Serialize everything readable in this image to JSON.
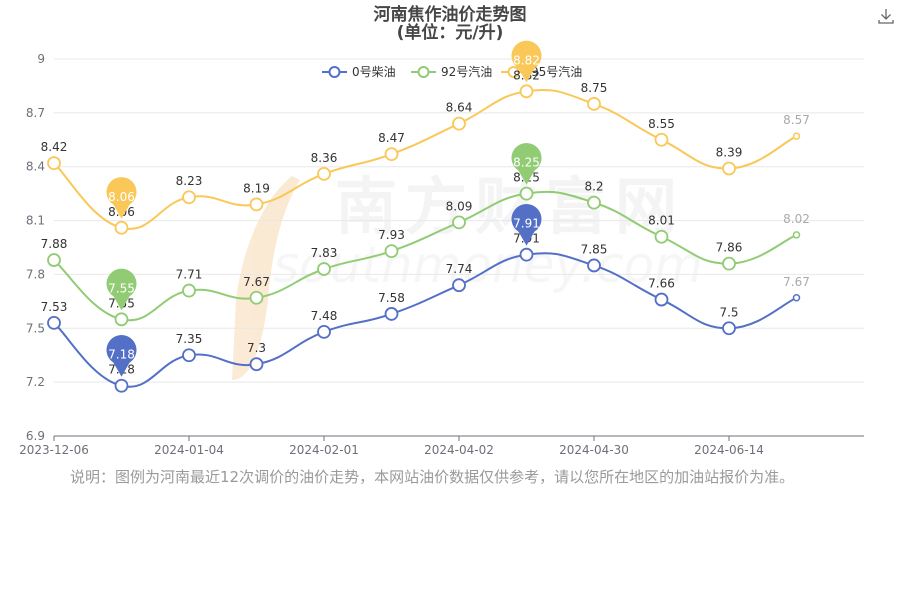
{
  "chart_data": {
    "type": "line",
    "title": "河南焦作油价走势图",
    "subtitle": "(单位：元/升)",
    "xlabel": "",
    "ylabel": "",
    "x_tick_labels": [
      "2023-12-06",
      "2024-01-04",
      "2024-02-01",
      "2024-04-02",
      "2024-04-30",
      "2024-06-14"
    ],
    "y_ticks": [
      6.9,
      7.2,
      7.5,
      7.8,
      8.1,
      8.4,
      8.7,
      9
    ],
    "ylim": [
      6.9,
      9
    ],
    "grid": true,
    "legend_position": "top-center",
    "point_count": 12,
    "series": [
      {
        "name": "0号柴油",
        "color": "#5470c6",
        "values": [
          7.53,
          7.18,
          7.35,
          7.3,
          7.48,
          7.58,
          7.74,
          7.91,
          7.85,
          7.66,
          7.5,
          7.67
        ],
        "markers": [
          {
            "label": "7.18",
            "index": 1
          },
          {
            "label": "7.91",
            "index": 7
          }
        ]
      },
      {
        "name": "92号汽油",
        "color": "#91cc75",
        "values": [
          7.88,
          7.55,
          7.71,
          7.67,
          7.83,
          7.93,
          8.09,
          8.25,
          8.2,
          8.01,
          7.86,
          8.02
        ],
        "markers": [
          {
            "label": "7.55",
            "index": 1
          },
          {
            "label": "8.25",
            "index": 7
          }
        ]
      },
      {
        "name": "95号汽油",
        "color": "#fac858",
        "values": [
          8.42,
          8.06,
          8.23,
          8.19,
          8.36,
          8.47,
          8.64,
          8.82,
          8.75,
          8.55,
          8.39,
          8.57
        ],
        "markers": [
          {
            "label": "8.06",
            "index": 1
          },
          {
            "label": "8.82",
            "index": 7
          }
        ]
      }
    ]
  },
  "note": "说明：图例为河南最近12次调价的油价走势，本网站油价数据仅供参考，请以您所在地区的加油站报价为准。",
  "watermark": {
    "text": "南方财富网",
    "subtext": "southmoney.com"
  },
  "download_icon": "download-icon"
}
